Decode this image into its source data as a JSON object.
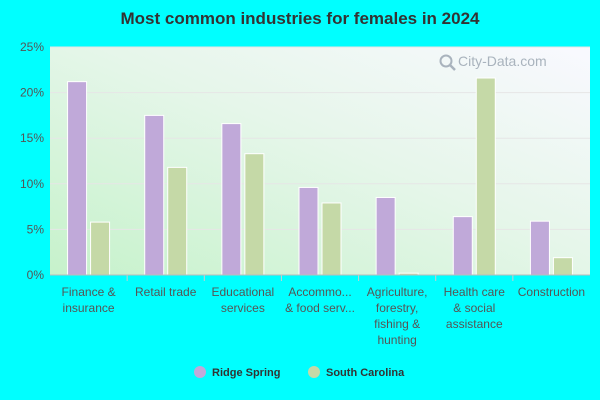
{
  "chart_data": {
    "type": "bar",
    "title": "Most common industries for females in 2024",
    "xlabel": "",
    "ylabel": "",
    "ylim": [
      0,
      25
    ],
    "yticks": [
      "0%",
      "5%",
      "10%",
      "15%",
      "20%",
      "25%"
    ],
    "ytick_values": [
      0,
      5,
      10,
      15,
      20,
      25
    ],
    "grid": true,
    "legend_position": "bottom",
    "categories": [
      [
        "Finance &",
        "insurance"
      ],
      [
        "Retail trade"
      ],
      [
        "Educational",
        "services"
      ],
      [
        "Accommo...",
        "& food serv..."
      ],
      [
        "Agriculture,",
        "forestry,",
        "fishing &",
        "hunting"
      ],
      [
        "Health care",
        "& social",
        "assistance"
      ],
      [
        "Construction"
      ]
    ],
    "series": [
      {
        "name": "Ridge Spring",
        "color": "#c0a9d9",
        "values": [
          21.2,
          17.5,
          16.6,
          9.6,
          8.5,
          6.4,
          5.9
        ]
      },
      {
        "name": "South Carolina",
        "color": "#c5d9a7",
        "values": [
          5.8,
          11.8,
          13.3,
          7.9,
          0.2,
          21.6,
          1.9
        ]
      }
    ]
  },
  "watermark": {
    "text": "City-Data.com",
    "icon": "magnifier-icon"
  }
}
